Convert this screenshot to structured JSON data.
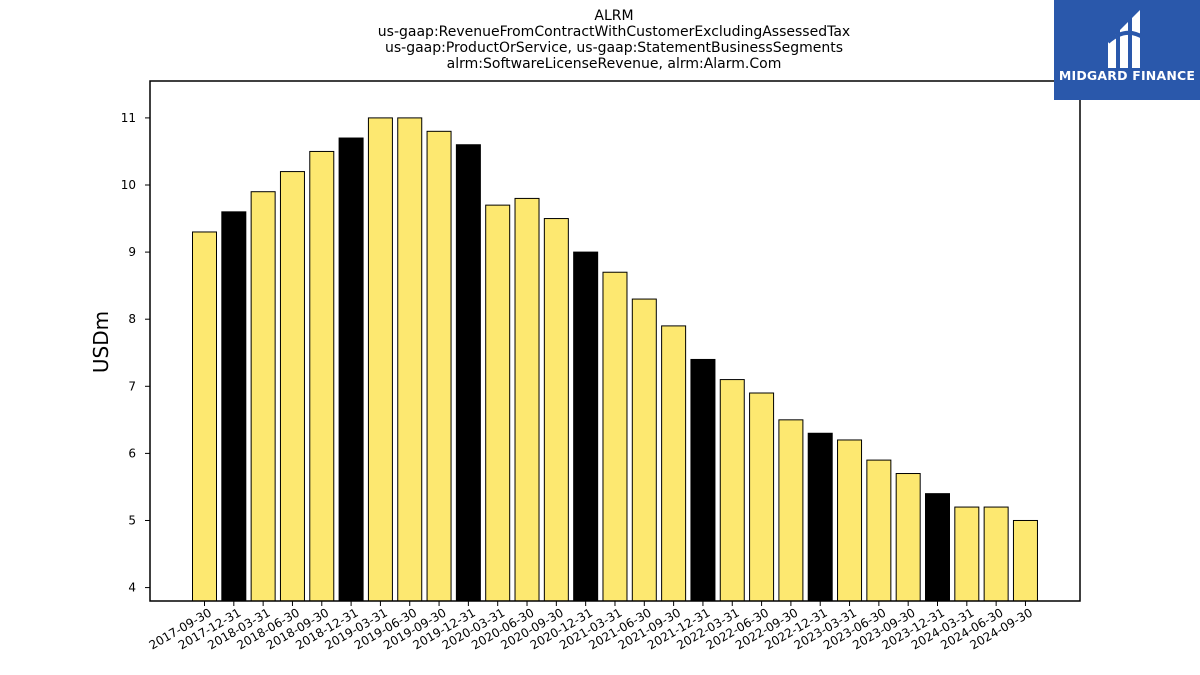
{
  "header": {
    "title_lines": [
      "ALRM",
      "us-gaap:RevenueFromContractWithCustomerExcludingAssessedTax",
      "us-gaap:ProductOrService, us-gaap:StatementBusinessSegments",
      "alrm:SoftwareLicenseRevenue, alrm:Alarm.Com"
    ]
  },
  "brand": {
    "name": "MIDGARD FINANCE",
    "color": "#2a58ab"
  },
  "chart_data": {
    "type": "bar",
    "title": "ALRM",
    "ylabel": "USDm",
    "xlabel": "",
    "ylim": [
      3.8,
      11.55
    ],
    "yticks": [
      4,
      5,
      6,
      7,
      8,
      9,
      10,
      11
    ],
    "grid": false,
    "categories": [
      "2017-09-30",
      "2017-12-31",
      "2018-03-31",
      "2018-06-30",
      "2018-09-30",
      "2018-12-31",
      "2019-03-31",
      "2019-06-30",
      "2019-09-30",
      "2019-12-31",
      "2020-03-31",
      "2020-06-30",
      "2020-09-30",
      "2020-12-31",
      "2021-03-31",
      "2021-06-30",
      "2021-09-30",
      "2021-12-31",
      "2022-03-31",
      "2022-06-30",
      "2022-09-30",
      "2022-12-31",
      "2023-03-31",
      "2023-06-30",
      "2023-09-30",
      "2023-12-31",
      "2024-03-31",
      "2024-06-30",
      "2024-09-30"
    ],
    "values": [
      9.3,
      9.6,
      9.9,
      10.2,
      10.5,
      10.7,
      11.0,
      11.0,
      10.8,
      10.6,
      9.7,
      9.8,
      9.5,
      9.0,
      8.7,
      8.3,
      7.9,
      7.4,
      7.1,
      6.9,
      6.5,
      6.3,
      6.2,
      5.9,
      5.7,
      5.4,
      5.2,
      5.2,
      5.0
    ],
    "colors": {
      "quarter": "#fde870",
      "year_end": "#000000",
      "edge": "#000000"
    }
  }
}
